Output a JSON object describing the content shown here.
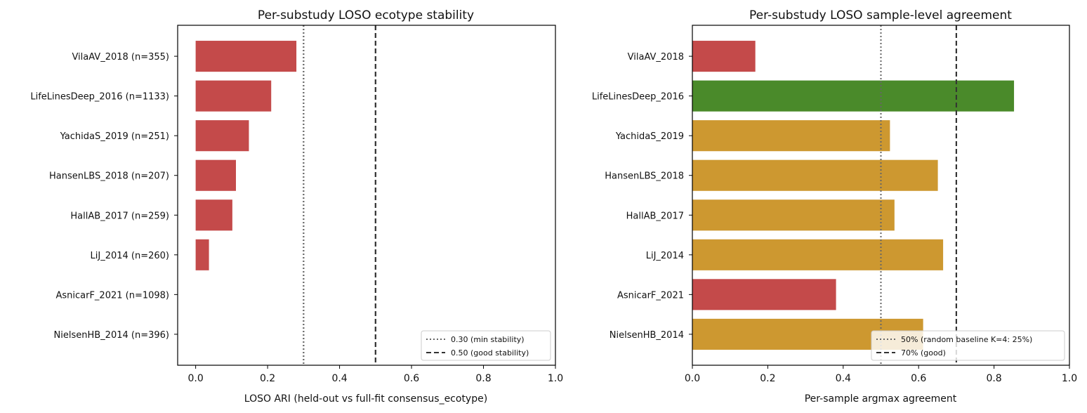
{
  "chart_data": [
    {
      "type": "bar",
      "orientation": "horizontal",
      "title": "Per-substudy LOSO ecotype stability",
      "xlabel": "LOSO ARI (held-out vs full-fit consensus_ecotype)",
      "ylabel": "",
      "xlim": [
        -0.05,
        1.0
      ],
      "xticks": [
        "0.0",
        "0.2",
        "0.4",
        "0.6",
        "0.8",
        "1.0"
      ],
      "grid": false,
      "legend_position": "lower-right",
      "categories": [
        "VilaAV_2018 (n=355)",
        "LifeLinesDeep_2016 (n=1133)",
        "YachidaS_2019 (n=251)",
        "HansenLBS_2018 (n=207)",
        "HallAB_2017 (n=259)",
        "LiJ_2014 (n=260)",
        "AsnicarF_2021 (n=1098)",
        "NielsenHB_2014 (n=396)"
      ],
      "values": [
        0.28,
        0.21,
        0.148,
        0.112,
        0.102,
        0.037,
        0.0,
        0.0
      ],
      "bar_colors": [
        "#c44a4a",
        "#c44a4a",
        "#c44a4a",
        "#c44a4a",
        "#c44a4a",
        "#c44a4a",
        "#c44a4a",
        "#c44a4a"
      ],
      "reference_lines": [
        {
          "value": 0.3,
          "style": "dotted",
          "color": "#666666",
          "label": "0.30 (min stability)"
        },
        {
          "value": 0.5,
          "style": "dashed",
          "color": "#333333",
          "label": "0.50 (good stability)"
        }
      ]
    },
    {
      "type": "bar",
      "orientation": "horizontal",
      "title": "Per-substudy LOSO sample-level agreement",
      "xlabel": "Per-sample argmax agreement",
      "ylabel": "",
      "xlim": [
        0.0,
        1.0
      ],
      "xticks": [
        "0.0",
        "0.2",
        "0.4",
        "0.6",
        "0.8",
        "1.0"
      ],
      "grid": false,
      "legend_position": "lower-right",
      "categories": [
        "VilaAV_2018",
        "LifeLinesDeep_2016",
        "YachidaS_2019",
        "HansenLBS_2018",
        "HallAB_2017",
        "LiJ_2014",
        "AsnicarF_2021",
        "NielsenHB_2014"
      ],
      "values": [
        0.167,
        0.853,
        0.524,
        0.651,
        0.536,
        0.665,
        0.381,
        0.612
      ],
      "bar_colors": [
        "#c44a4a",
        "#4a8a2a",
        "#cd9830",
        "#cd9830",
        "#cd9830",
        "#cd9830",
        "#c44a4a",
        "#cd9830"
      ],
      "reference_lines": [
        {
          "value": 0.5,
          "style": "dotted",
          "color": "#666666",
          "label": "50% (random baseline K=4: 25%)"
        },
        {
          "value": 0.7,
          "style": "dashed",
          "color": "#333333",
          "label": "70% (good)"
        }
      ]
    }
  ]
}
